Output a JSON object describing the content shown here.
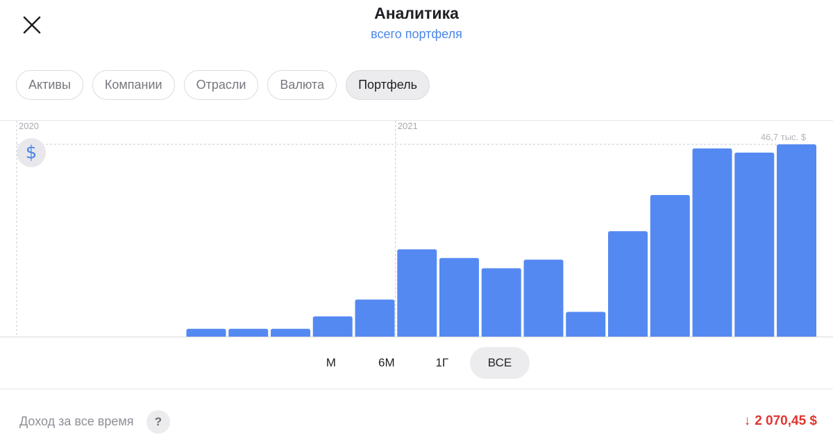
{
  "header": {
    "title": "Аналитика",
    "subtitle": "всего портфеля"
  },
  "tabs": [
    {
      "label": "Активы",
      "active": false
    },
    {
      "label": "Компании",
      "active": false
    },
    {
      "label": "Отрасли",
      "active": false
    },
    {
      "label": "Валюта",
      "active": false
    },
    {
      "label": "Портфель",
      "active": true
    }
  ],
  "chart_data": {
    "type": "bar",
    "year_labels": [
      "2020",
      "2021"
    ],
    "max_label": "46,7 тыс. $",
    "ymax": 46.7,
    "color": "#5589f2",
    "values": [
      0,
      0,
      0,
      0,
      1.9,
      1.9,
      1.9,
      4.9,
      9.0,
      21.2,
      19.1,
      16.6,
      18.7,
      6.0,
      25.6,
      34.4,
      45.7,
      44.7,
      46.7
    ],
    "year_start_index": {
      "2020": 0,
      "2021": 9
    }
  },
  "periods": [
    {
      "label": "М",
      "active": false
    },
    {
      "label": "6М",
      "active": false
    },
    {
      "label": "1Г",
      "active": false
    },
    {
      "label": "ВСЕ",
      "active": true
    }
  ],
  "footer": {
    "label": "Доход за все время",
    "help": "?",
    "value": "2 070,45 $",
    "arrow": "↓",
    "value_color": "#e0342f"
  },
  "icons": {
    "close": "close-icon",
    "currency": "$"
  }
}
